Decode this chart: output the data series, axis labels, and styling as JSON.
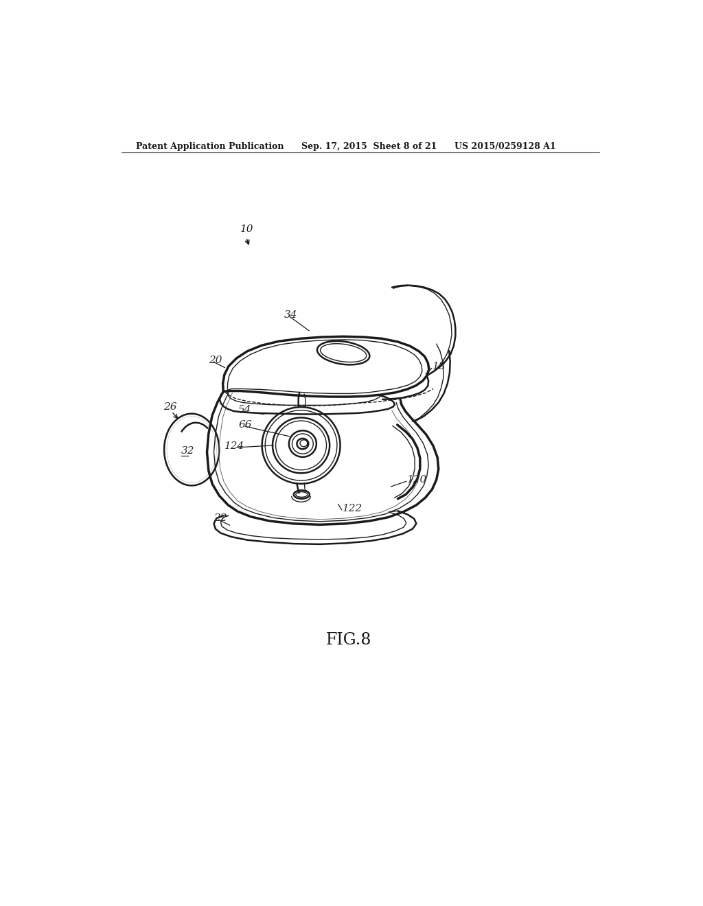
{
  "background_color": "#ffffff",
  "header_left": "Patent Application Publication",
  "header_center": "Sep. 17, 2015  Sheet 8 of 21",
  "header_right": "US 2015/0259128 A1",
  "figure_label": "FIG.8",
  "line_color": "#1a1a1a",
  "text_color": "#1a1a1a",
  "label_color": "#2a2a2a"
}
